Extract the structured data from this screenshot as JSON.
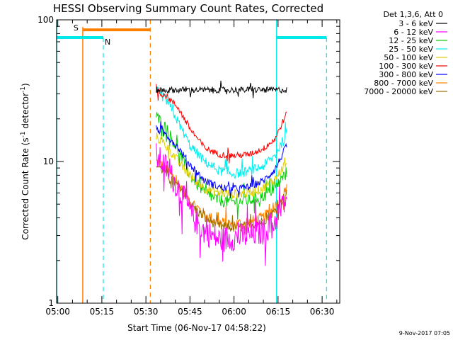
{
  "chart_data": {
    "type": "line",
    "title": "HESSI Observing Summary Count Rates, Corrected",
    "xlabel": "Start Time (06-Nov-17 04:58:22)",
    "ylabel_main": "Corrected Count Rate (s",
    "ylabel_sup1": "-1",
    "ylabel_mid": " detector",
    "ylabel_sup2": "-1",
    "ylabel_end": ")",
    "yscale": "log",
    "ylim": [
      1,
      100
    ],
    "xlim_minutes": [
      -0.4,
      96.0
    ],
    "x_ticks": [
      {
        "min": 0,
        "label": "05:00"
      },
      {
        "min": 15,
        "label": "05:15"
      },
      {
        "min": 30,
        "label": "05:30"
      },
      {
        "min": 45,
        "label": "05:45"
      },
      {
        "min": 60,
        "label": "06:00"
      },
      {
        "min": 75,
        "label": "06:15"
      },
      {
        "min": 90,
        "label": "06:30"
      }
    ],
    "y_ticks": [
      {
        "value": 1,
        "label": "1"
      },
      {
        "value": 10,
        "label": "10"
      },
      {
        "value": 100,
        "label": "100"
      }
    ],
    "legend": {
      "header": "Det 1,3,6, Att 0",
      "placement": "right"
    },
    "footer": "9-Nov-2017 07:05",
    "annotations": {
      "saa_label": "S",
      "night_label": "N",
      "saa_color": "#ff8000",
      "night_color": "#00e8e8",
      "saa_start": 8.5,
      "saa_end": 31.5,
      "saa_level": 85,
      "night_start_1": -1.0,
      "night_end_1": 15.5,
      "night_start_2": 74.5,
      "night_end_2": 91.5,
      "night_level": 75,
      "saa_start_solid": 8.5,
      "night_end_dashed_1": 15.5,
      "saa_end_dashed": 31.5,
      "night_start_solid_2": 74.5,
      "night_end_dashed_2": 91.5
    },
    "data_window": [
      33.5,
      78.0
    ],
    "series": [
      {
        "name": "3 - 6 keV",
        "color": "#000000",
        "profile": [
          [
            33.5,
            32
          ],
          [
            40,
            32
          ],
          [
            50,
            32
          ],
          [
            60,
            32
          ],
          [
            70,
            32
          ],
          [
            78,
            32
          ]
        ],
        "jitter": 0.05
      },
      {
        "name": "6 - 12 keV",
        "color": "#ff00ff",
        "profile": [
          [
            33.5,
            11
          ],
          [
            37,
            9
          ],
          [
            42,
            6
          ],
          [
            46,
            4
          ],
          [
            50,
            3.2
          ],
          [
            55,
            2.8
          ],
          [
            60,
            2.9
          ],
          [
            65,
            3.0
          ],
          [
            70,
            3.2
          ],
          [
            74,
            3.8
          ],
          [
            78,
            5.5
          ]
        ],
        "jitter": 0.22
      },
      {
        "name": "12 - 25 keV",
        "color": "#00d000",
        "profile": [
          [
            33.5,
            21
          ],
          [
            37,
            17
          ],
          [
            41,
            12
          ],
          [
            45,
            8
          ],
          [
            50,
            6
          ],
          [
            55,
            5.3
          ],
          [
            60,
            5.2
          ],
          [
            65,
            5.3
          ],
          [
            70,
            5.7
          ],
          [
            74,
            6.5
          ],
          [
            78,
            8.5
          ]
        ],
        "jitter": 0.1
      },
      {
        "name": "25 - 50 keV",
        "color": "#00f0f0",
        "profile": [
          [
            33.5,
            32
          ],
          [
            37,
            27
          ],
          [
            41,
            19
          ],
          [
            45,
            13
          ],
          [
            50,
            10
          ],
          [
            55,
            8.6
          ],
          [
            60,
            8.2
          ],
          [
            65,
            8.5
          ],
          [
            70,
            9.3
          ],
          [
            74,
            11
          ],
          [
            78,
            16
          ]
        ],
        "jitter": 0.08
      },
      {
        "name": "50 - 100 keV",
        "color": "#e0d000",
        "profile": [
          [
            33.5,
            15
          ],
          [
            37,
            13
          ],
          [
            41,
            10
          ],
          [
            45,
            8
          ],
          [
            50,
            6.5
          ],
          [
            55,
            6
          ],
          [
            60,
            5.9
          ],
          [
            65,
            6
          ],
          [
            70,
            6.5
          ],
          [
            74,
            7.5
          ],
          [
            78,
            10
          ]
        ],
        "jitter": 0.08
      },
      {
        "name": "100 - 300 keV",
        "color": "#ff0000",
        "profile": [
          [
            33.5,
            31
          ],
          [
            37,
            29
          ],
          [
            41,
            24
          ],
          [
            45,
            17
          ],
          [
            50,
            12.5
          ],
          [
            55,
            11.2
          ],
          [
            60,
            11
          ],
          [
            65,
            11.2
          ],
          [
            70,
            12.3
          ],
          [
            74,
            14.5
          ],
          [
            78,
            22
          ]
        ],
        "jitter": 0.05
      },
      {
        "name": "300 - 800 keV",
        "color": "#0000ff",
        "profile": [
          [
            33.5,
            17
          ],
          [
            37,
            15.5
          ],
          [
            41,
            12.5
          ],
          [
            45,
            9.5
          ],
          [
            50,
            7.3
          ],
          [
            55,
            6.6
          ],
          [
            60,
            6.4
          ],
          [
            65,
            6.6
          ],
          [
            70,
            7.3
          ],
          [
            74,
            8.8
          ],
          [
            78,
            13
          ]
        ],
        "jitter": 0.06
      },
      {
        "name": "800 - 7000 keV",
        "color": "#ff8000",
        "profile": [
          [
            33.5,
            10
          ],
          [
            37,
            8.8
          ],
          [
            41,
            7
          ],
          [
            45,
            5.3
          ],
          [
            50,
            4.2
          ],
          [
            55,
            3.7
          ],
          [
            60,
            3.6
          ],
          [
            65,
            3.7
          ],
          [
            70,
            4.0
          ],
          [
            74,
            4.8
          ],
          [
            78,
            6.4
          ]
        ],
        "jitter": 0.1
      },
      {
        "name": "7000 - 20000 keV",
        "color": "#9a7000",
        "profile": [
          [
            33.5,
            9.5
          ],
          [
            37,
            8.3
          ],
          [
            41,
            6.6
          ],
          [
            45,
            5
          ],
          [
            50,
            4
          ],
          [
            55,
            3.5
          ],
          [
            60,
            3.4
          ],
          [
            65,
            3.5
          ],
          [
            70,
            3.8
          ],
          [
            74,
            4.5
          ],
          [
            78,
            6
          ]
        ],
        "jitter": 0.08
      }
    ]
  }
}
